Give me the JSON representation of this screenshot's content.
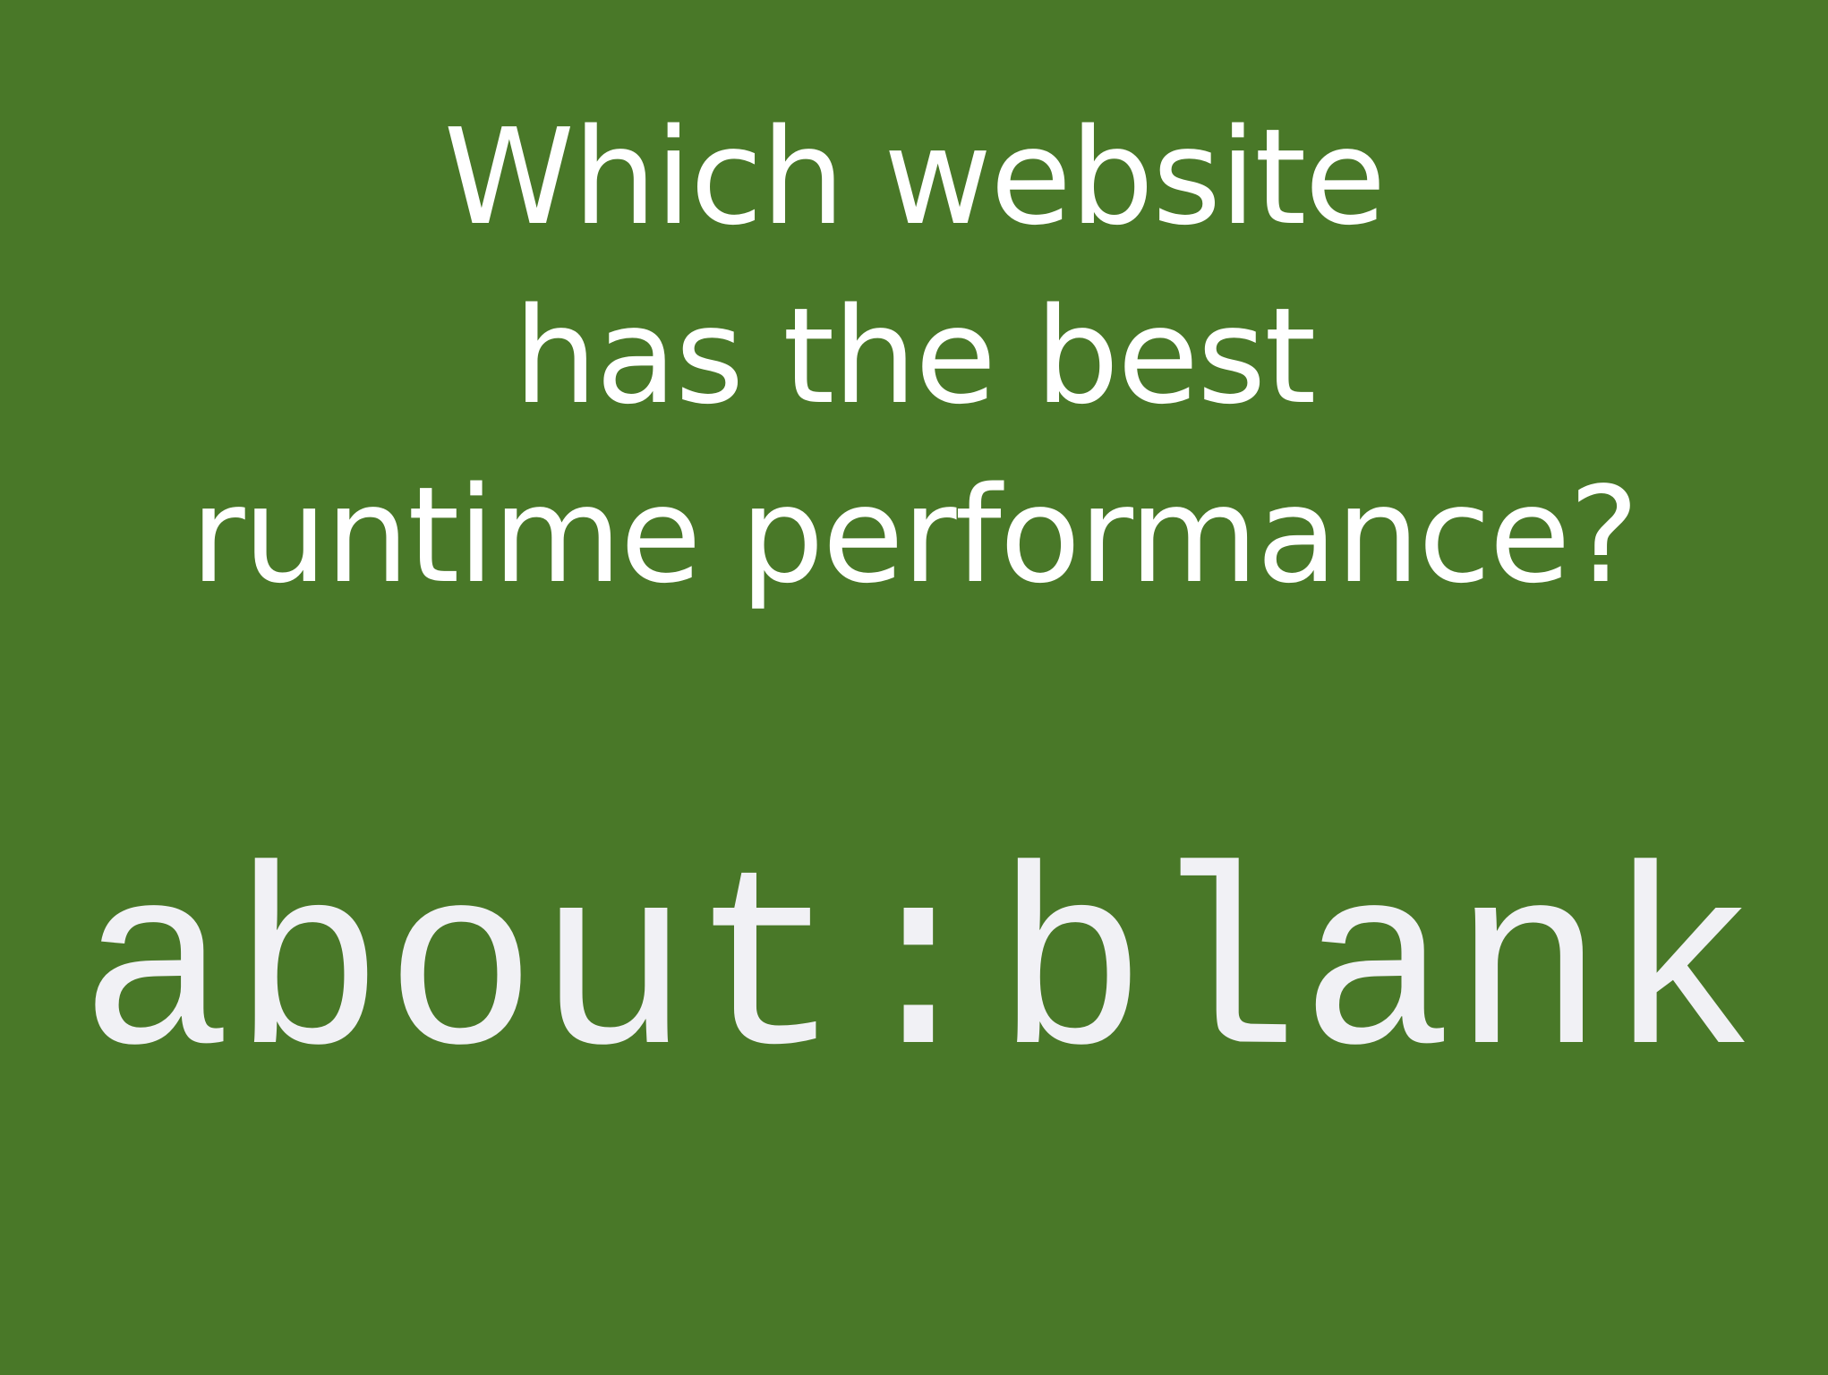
{
  "slide": {
    "question_lines": [
      "Which website",
      "has the best",
      "runtime performance?"
    ],
    "answer": "about:blank",
    "background_color": "#497828",
    "text_color": "#ffffff",
    "answer_color": "#f1f1f5"
  }
}
